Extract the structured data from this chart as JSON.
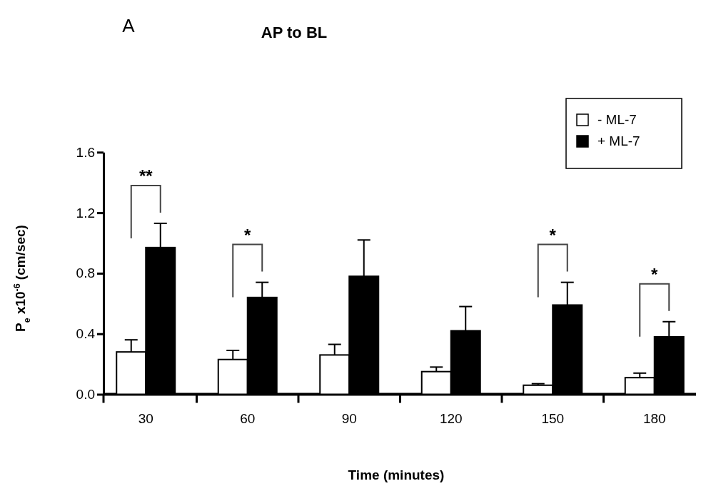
{
  "chart_data": {
    "type": "bar",
    "title": "AP to BL",
    "xlabel": "Time (minutes)",
    "ylabel": "P$_{e}$ x10$^{-6}$ (cm/sec)",
    "categories": [
      "30",
      "60",
      "90",
      "120",
      "150",
      "180"
    ],
    "series": [
      {
        "name": "- ML-7",
        "color": "#ffffff",
        "values": [
          0.28,
          0.23,
          0.26,
          0.15,
          0.06,
          0.11
        ],
        "errors": [
          [
            0.28,
            0.36
          ],
          [
            0.23,
            0.29
          ],
          [
            0.26,
            0.33
          ],
          [
            0.15,
            0.18
          ],
          [
            0.06,
            0.07
          ],
          [
            0.11,
            0.14
          ]
        ]
      },
      {
        "name": "+ ML-7",
        "color": "#000000",
        "values": [
          0.97,
          0.64,
          0.78,
          0.42,
          0.59,
          0.38
        ],
        "errors": [
          [
            0.97,
            1.13
          ],
          [
            0.64,
            0.74
          ],
          [
            0.78,
            1.02
          ],
          [
            0.42,
            0.58
          ],
          [
            0.59,
            0.74
          ],
          [
            0.38,
            0.48
          ]
        ]
      }
    ],
    "ylim": [
      0,
      1.6
    ],
    "yticks": [
      {
        "value": 0,
        "label": "0.0"
      },
      {
        "value": 0.4,
        "label": "0.4"
      },
      {
        "value": 0.8,
        "label": "0.8"
      },
      {
        "value": 1.2,
        "label": "1.2"
      },
      {
        "value": 1.6,
        "label": "1.6"
      }
    ],
    "grid": false,
    "legend": "top right",
    "annotations": [
      "A",
      "**",
      "*",
      "*",
      "*"
    ]
  }
}
